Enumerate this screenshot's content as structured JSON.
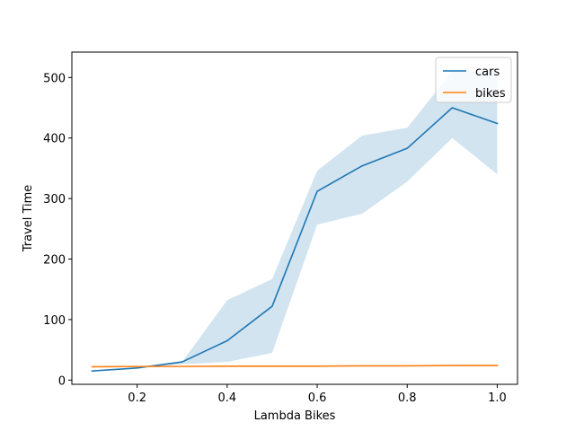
{
  "chart_data": {
    "type": "line",
    "xlabel": "Lambda Bikes",
    "ylabel": "Travel Time",
    "xlim": [
      0.055,
      1.045
    ],
    "ylim": [
      -7,
      542
    ],
    "x_ticks": [
      0.2,
      0.4,
      0.6,
      0.8,
      1.0
    ],
    "x_tick_labels": [
      "0.2",
      "0.4",
      "0.6",
      "0.8",
      "1.0"
    ],
    "y_ticks": [
      0,
      100,
      200,
      300,
      400,
      500
    ],
    "y_tick_labels": [
      "0",
      "100",
      "200",
      "300",
      "400",
      "500"
    ],
    "x": [
      0.1,
      0.2,
      0.3,
      0.4,
      0.5,
      0.6,
      0.7,
      0.8,
      0.9,
      1.0
    ],
    "series": [
      {
        "name": "cars",
        "color": "#1f77b4",
        "values": [
          15,
          20,
          30,
          65,
          122,
          312,
          354,
          383,
          450,
          424
        ],
        "band_lower": [
          15,
          20,
          26,
          30,
          45,
          257,
          275,
          328,
          400,
          340
        ],
        "band_upper": [
          15,
          20,
          30,
          132,
          167,
          346,
          404,
          417,
          510,
          510
        ]
      },
      {
        "name": "bikes",
        "color": "#ff7f0e",
        "values": [
          22,
          22.5,
          22.5,
          23,
          23,
          23,
          23.5,
          23.5,
          24,
          24
        ]
      }
    ],
    "legend_position": "top-right",
    "grid": false
  }
}
